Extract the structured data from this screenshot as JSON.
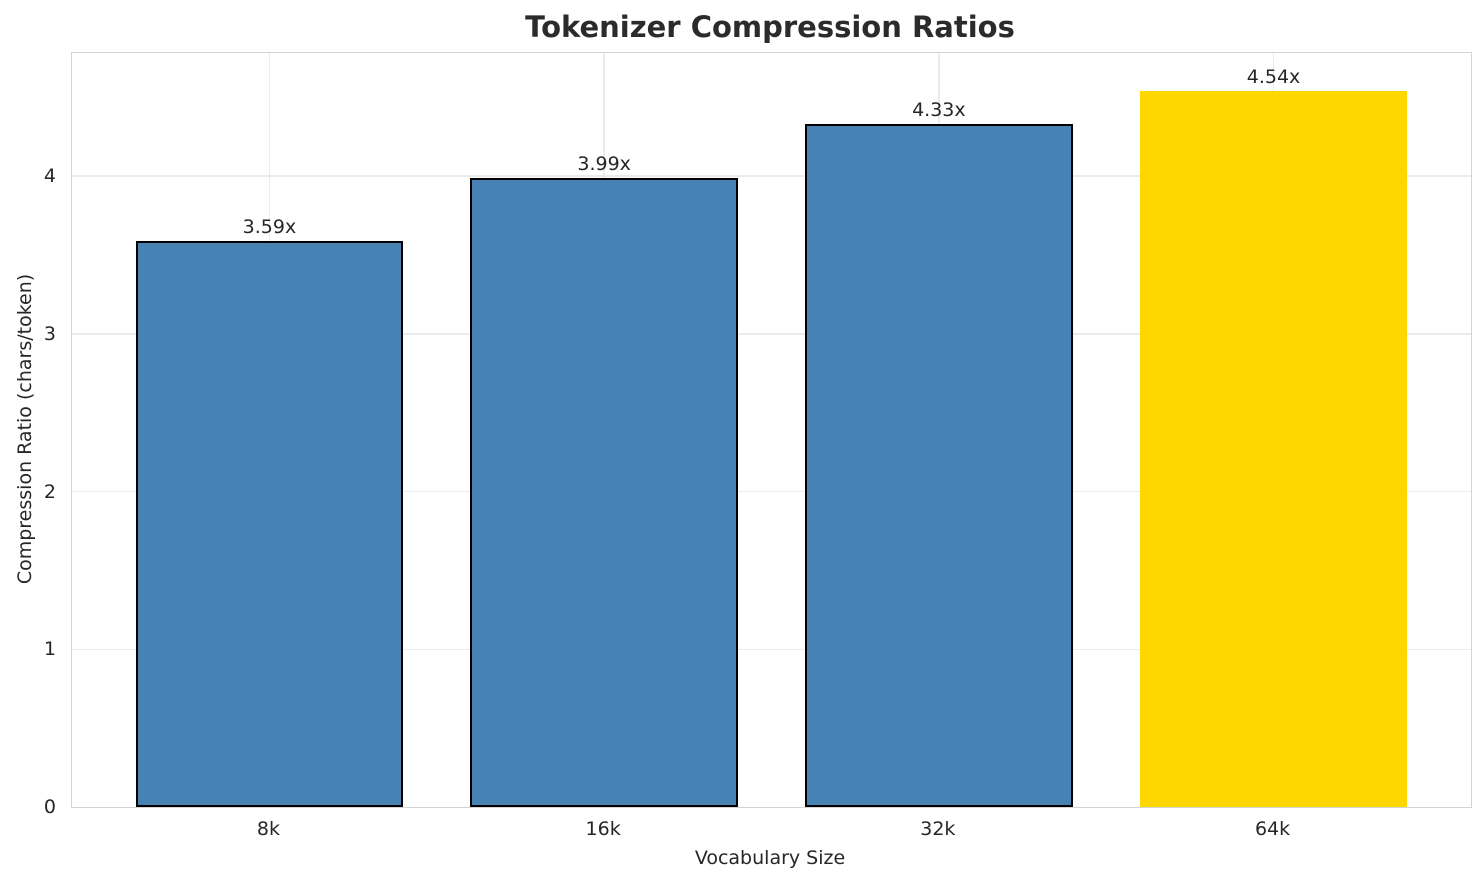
{
  "chart_data": {
    "type": "bar",
    "title": "Tokenizer Compression Ratios",
    "xlabel": "Vocabulary Size",
    "ylabel": "Compression Ratio (chars/token)",
    "categories": [
      "8k",
      "16k",
      "32k",
      "64k"
    ],
    "values": [
      3.59,
      3.99,
      4.33,
      4.54
    ],
    "bar_labels": [
      "3.59x",
      "3.99x",
      "4.33x",
      "4.54x"
    ],
    "bar_colors": [
      "#4682b4",
      "#4682b4",
      "#4682b4",
      "#ffd700"
    ],
    "bar_edge_colors": [
      "#000000",
      "#000000",
      "#000000",
      "none"
    ],
    "bar_edge_width": 2,
    "highlighted_category": "64k",
    "yticks": [
      0,
      1,
      2,
      3,
      4
    ],
    "ylim": [
      0,
      4.78
    ],
    "xlim": [
      -0.59,
      3.59
    ],
    "bar_rel_width": 0.8,
    "grid": true,
    "legend_position": "none",
    "text_color": "#262626",
    "title_color": "#2b2b2b",
    "grid_color": "#ebebeb",
    "spine_color": "#d4d4d4"
  }
}
